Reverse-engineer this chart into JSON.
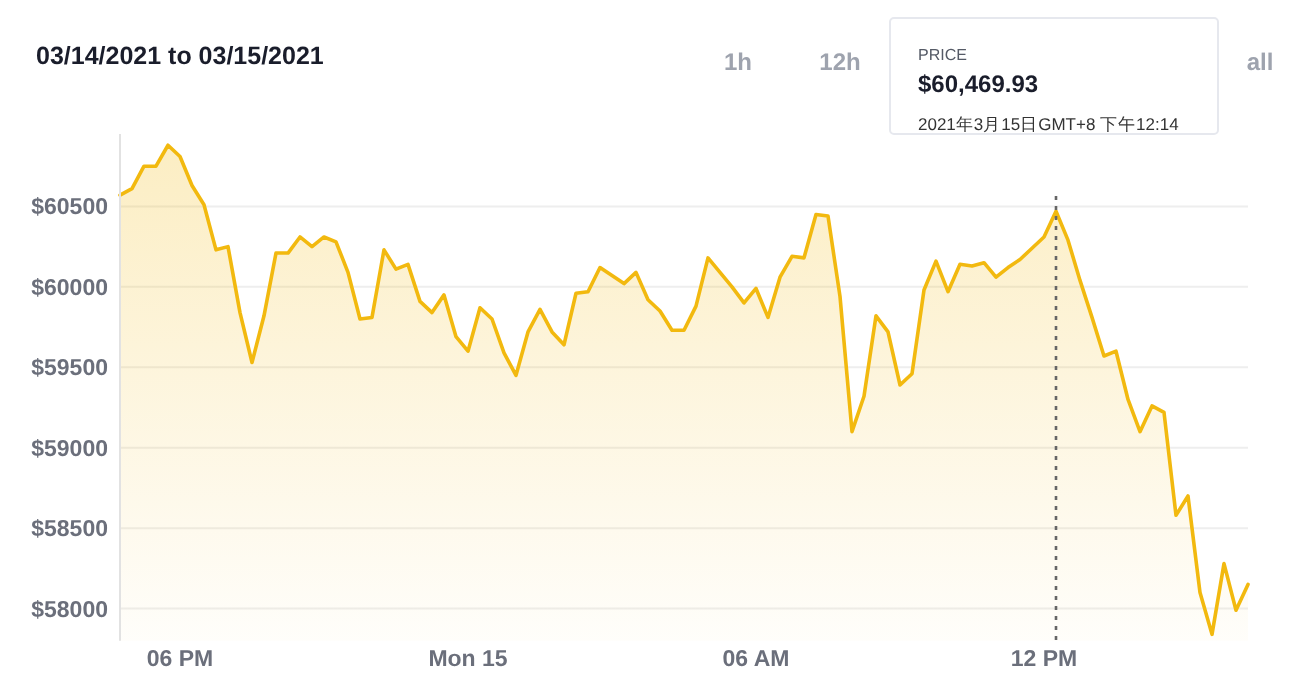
{
  "chart_data": {
    "type": "area",
    "title": "03/14/2021 to 03/15/2021",
    "annotations": [
      "1h",
      "12h",
      "all",
      "PRICE",
      "$60,469.93",
      "2021年3月15日GMT+8 下午12:14"
    ],
    "x": [
      "2021-03-14T16:45",
      "2021-03-14T17:00",
      "2021-03-14T17:15",
      "2021-03-14T17:30",
      "2021-03-14T17:45",
      "2021-03-14T18:00",
      "2021-03-14T18:15",
      "2021-03-14T18:30",
      "2021-03-14T18:45",
      "2021-03-14T19:00",
      "2021-03-14T19:15",
      "2021-03-14T19:30",
      "2021-03-14T19:45",
      "2021-03-14T20:00",
      "2021-03-14T20:15",
      "2021-03-14T20:30",
      "2021-03-14T20:45",
      "2021-03-14T21:00",
      "2021-03-14T21:15",
      "2021-03-14T21:30",
      "2021-03-14T21:45",
      "2021-03-14T22:00",
      "2021-03-14T22:15",
      "2021-03-14T22:30",
      "2021-03-14T22:45",
      "2021-03-14T23:00",
      "2021-03-14T23:15",
      "2021-03-14T23:30",
      "2021-03-14T23:45",
      "2021-03-15T00:00",
      "2021-03-15T00:15",
      "2021-03-15T00:30",
      "2021-03-15T00:45",
      "2021-03-15T01:00",
      "2021-03-15T01:15",
      "2021-03-15T01:30",
      "2021-03-15T01:45",
      "2021-03-15T02:00",
      "2021-03-15T02:15",
      "2021-03-15T02:30",
      "2021-03-15T02:45",
      "2021-03-15T03:00",
      "2021-03-15T03:15",
      "2021-03-15T03:30",
      "2021-03-15T03:45",
      "2021-03-15T04:00",
      "2021-03-15T04:15",
      "2021-03-15T04:30",
      "2021-03-15T04:45",
      "2021-03-15T05:00",
      "2021-03-15T05:15",
      "2021-03-15T05:30",
      "2021-03-15T05:45",
      "2021-03-15T06:00",
      "2021-03-15T06:15",
      "2021-03-15T06:30",
      "2021-03-15T06:45",
      "2021-03-15T07:00",
      "2021-03-15T07:15",
      "2021-03-15T07:30",
      "2021-03-15T07:45",
      "2021-03-15T08:00",
      "2021-03-15T08:15",
      "2021-03-15T08:30",
      "2021-03-15T08:45",
      "2021-03-15T09:00",
      "2021-03-15T09:15",
      "2021-03-15T09:30",
      "2021-03-15T09:45",
      "2021-03-15T10:00",
      "2021-03-15T10:15",
      "2021-03-15T10:30",
      "2021-03-15T10:45",
      "2021-03-15T11:00",
      "2021-03-15T11:15",
      "2021-03-15T11:30",
      "2021-03-15T11:45",
      "2021-03-15T12:00",
      "2021-03-15T12:15",
      "2021-03-15T12:30",
      "2021-03-15T12:45",
      "2021-03-15T13:00",
      "2021-03-15T13:15",
      "2021-03-15T13:30",
      "2021-03-15T13:45",
      "2021-03-15T14:00",
      "2021-03-15T14:15",
      "2021-03-15T14:30",
      "2021-03-15T14:45",
      "2021-03-15T15:00",
      "2021-03-15T15:15",
      "2021-03-15T15:30",
      "2021-03-15T15:45",
      "2021-03-15T16:00",
      "2021-03-15T16:15"
    ],
    "series": [
      {
        "color": "#f2b90f",
        "values": [
          60570,
          60610,
          60750,
          60750,
          60880,
          60810,
          60630,
          60510,
          60230,
          60250,
          59840,
          59530,
          59820,
          60210,
          60210,
          60310,
          60250,
          60310,
          60280,
          60090,
          59800,
          59810,
          60230,
          60110,
          60140,
          59910,
          59840,
          59950,
          59690,
          59600,
          59870,
          59800,
          59590,
          59450,
          59720,
          59860,
          59720,
          59640,
          59960,
          59970,
          60120,
          60070,
          60020,
          60090,
          59920,
          59850,
          59730,
          59730,
          59880,
          60180,
          60090,
          60000,
          59900,
          59990,
          59810,
          60060,
          60190,
          60180,
          60450,
          60440,
          59940,
          59100,
          59320,
          59820,
          59720,
          59390,
          59460,
          59980,
          60160,
          59970,
          60140,
          60130,
          60150,
          60060,
          60120,
          60170,
          60240,
          60310,
          60470,
          60290,
          60040,
          59810,
          59570,
          59600,
          59300,
          59100,
          59260,
          59220,
          58580,
          58700,
          58100,
          57840,
          58280,
          57990,
          58150
        ]
      }
    ],
    "xlim": [
      "2021-03-14T16:45",
      "2021-03-15T16:15"
    ],
    "xticks": [
      {
        "value": "2021-03-14T18:00",
        "label": "06 PM"
      },
      {
        "value": "2021-03-15T00:00",
        "label": "Mon 15"
      },
      {
        "value": "2021-03-15T06:00",
        "label": "06 AM"
      },
      {
        "value": "2021-03-15T12:00",
        "label": "12 PM"
      }
    ],
    "ylim": [
      57800,
      60950
    ],
    "yticks": [
      {
        "value": 58000,
        "label": "$58000"
      },
      {
        "value": 58500,
        "label": "$58500"
      },
      {
        "value": 59000,
        "label": "$59000"
      },
      {
        "value": 59500,
        "label": "$59500"
      },
      {
        "value": 60000,
        "label": "$60000"
      },
      {
        "value": 60500,
        "label": "$60500"
      }
    ],
    "grid": "y",
    "ref_lines": [
      {
        "axis": "x",
        "value": "2021-03-15T12:15",
        "color": "#666666",
        "line_style": "dotted"
      }
    ]
  }
}
